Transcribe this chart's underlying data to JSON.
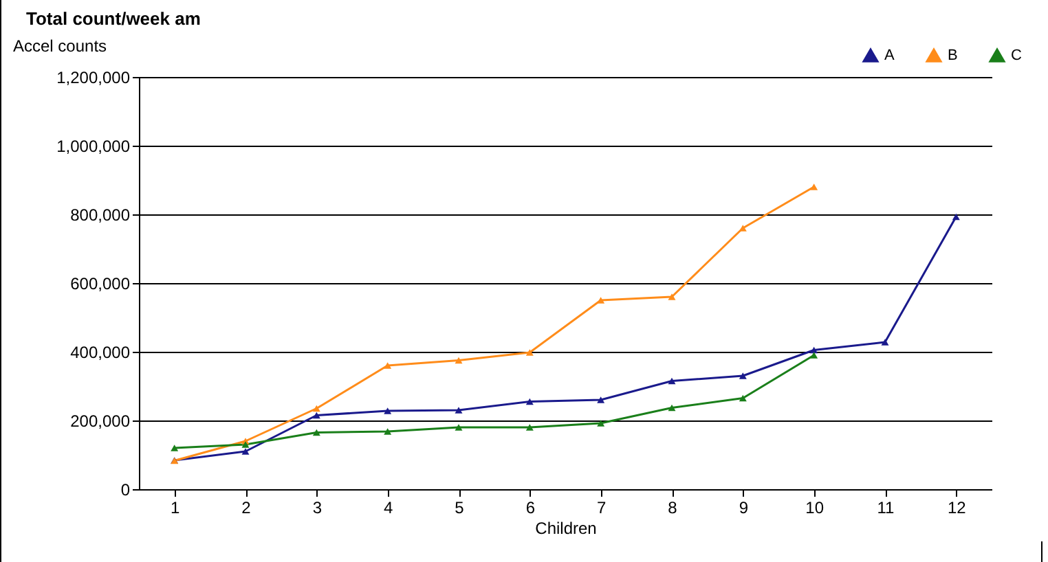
{
  "chart_data": {
    "type": "line",
    "title": "Total count/week am",
    "xlabel": "Children",
    "ylabel": "Accel counts",
    "x": [
      1,
      2,
      3,
      4,
      5,
      6,
      7,
      8,
      9,
      10,
      11,
      12
    ],
    "xlim": [
      0.5,
      12.5
    ],
    "xticks": [
      1,
      2,
      3,
      4,
      5,
      6,
      7,
      8,
      9,
      10,
      11,
      12
    ],
    "series": [
      {
        "name": "A",
        "color": "#1a1a8c",
        "values": [
          84000,
          110000,
          215000,
          228000,
          230000,
          255000,
          260000,
          315000,
          330000,
          405000,
          428000,
          793000
        ]
      },
      {
        "name": "B",
        "color": "#ff8c1a",
        "values": [
          83000,
          140000,
          235000,
          360000,
          375000,
          398000,
          550000,
          560000,
          760000,
          880000,
          null,
          null
        ]
      },
      {
        "name": "C",
        "color": "#1a7f1a",
        "values": [
          120000,
          130000,
          165000,
          168000,
          180000,
          180000,
          192000,
          237000,
          265000,
          390000,
          null,
          null
        ]
      }
    ],
    "ylim": [
      0,
      1200000
    ],
    "yticks": [
      0,
      {
        "value": 200000,
        "label": "200,000"
      },
      {
        "value": 400000,
        "label": "400,000"
      },
      {
        "value": 600000,
        "label": "600,000"
      },
      {
        "value": 800000,
        "label": "800,000"
      },
      {
        "value": 1000000,
        "label": "1,000,000"
      },
      {
        "value": 1200000,
        "label": "1,200,000"
      }
    ],
    "grid": "y",
    "legend": "top right",
    "marker": "triangle",
    "line_style": "solid"
  }
}
